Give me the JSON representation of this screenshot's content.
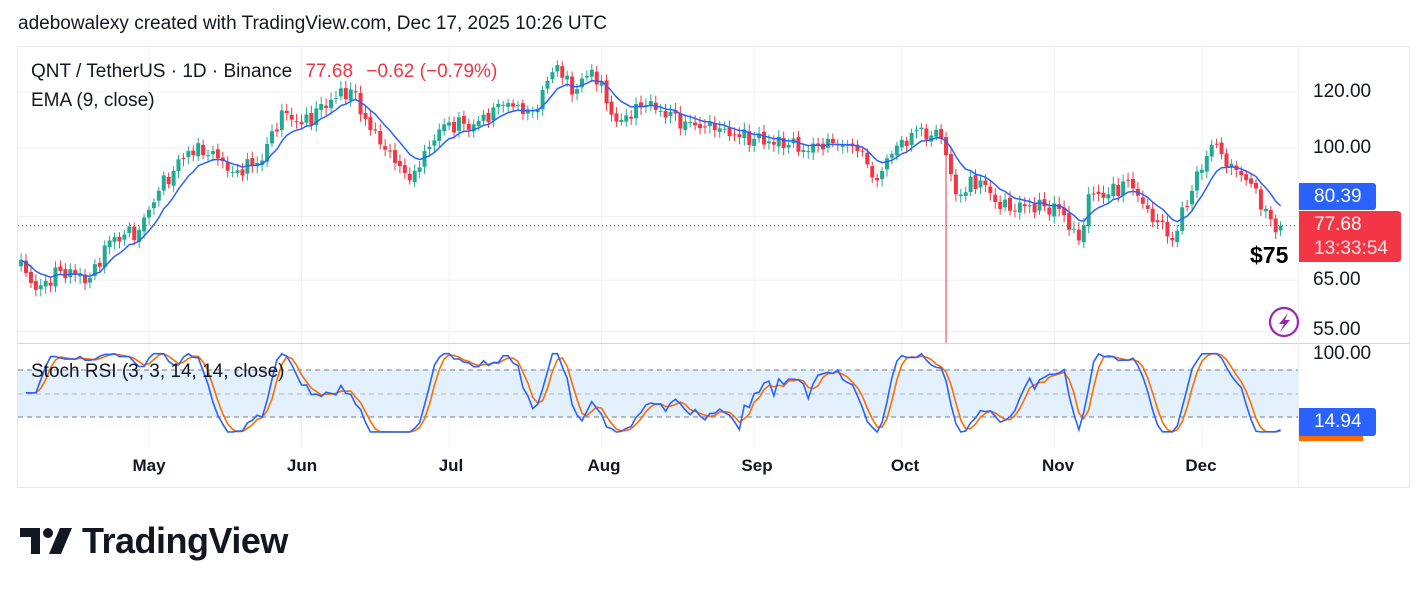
{
  "header": {
    "attribution": "adebowalexy created with TradingView.com, Dec 17, 2025 10:26 UTC"
  },
  "legend": {
    "symbol": "QNT / TetherUS · 1D · Binance",
    "last": "77.68",
    "change": "−0.62 (−0.79%)",
    "ema": "EMA (9, close)",
    "stoch": "Stoch RSI (3, 3, 14, 14, close)"
  },
  "price_axis": {
    "ticks": [
      "120.00",
      "100.00",
      "65.00",
      "55.00"
    ],
    "stoch_ticks": [
      "100.00"
    ]
  },
  "tags": {
    "ema_value": "80.39",
    "last_price": "77.68",
    "countdown": "13:33:54",
    "stoch_value": "14.94"
  },
  "annotation": "$75",
  "logo": "TradingView",
  "colors": {
    "up": "#22ab94",
    "down": "#f23645",
    "ema": "#2962ff",
    "stoch_k": "#2962ff",
    "stoch_d": "#ff6d00",
    "tag_blue": "#2962ff",
    "tag_red": "#f23645",
    "band": "#e3f0fd"
  },
  "chart_data": {
    "type": "candlestick",
    "title": "QNT / TetherUS · 1D · Binance",
    "scale": "log",
    "ylim": [
      52,
      138
    ],
    "x_ticks": [
      "May",
      "Jun",
      "Jul",
      "Aug",
      "Sep",
      "Oct",
      "Nov",
      "Dec"
    ],
    "y_ticks": [
      120,
      100,
      65,
      55
    ],
    "grid": true,
    "approx_closes": [
      [
        "Apr 5",
        69.4
      ],
      [
        "Apr 8",
        63
      ],
      [
        "Apr 13",
        67
      ],
      [
        "Apr 19",
        65.5
      ],
      [
        "Apr 23",
        74
      ],
      [
        "Apr 29",
        76.6
      ],
      [
        "May 3",
        87
      ],
      [
        "May 9",
        99
      ],
      [
        "May 14",
        99
      ],
      [
        "May 18",
        92.5
      ],
      [
        "May 24",
        96
      ],
      [
        "May 28",
        113
      ],
      [
        "Jun 1",
        108
      ],
      [
        "Jun 7",
        117
      ],
      [
        "Jun 11",
        121
      ],
      [
        "Jun 15",
        106
      ],
      [
        "Jun 19",
        99
      ],
      [
        "Jun 23",
        90
      ],
      [
        "Jun 26",
        99
      ],
      [
        "Jun 30",
        108
      ],
      [
        "Jul 6",
        108
      ],
      [
        "Jul 12",
        115
      ],
      [
        "Jul 18",
        113
      ],
      [
        "Jul 23",
        131
      ],
      [
        "Jul 26",
        119
      ],
      [
        "Jul 30",
        129
      ],
      [
        "Aug 4",
        109
      ],
      [
        "Aug 10",
        115
      ],
      [
        "Aug 18",
        109
      ],
      [
        "Aug 24",
        106
      ],
      [
        "Sep 1",
        103
      ],
      [
        "Sep 8",
        101
      ],
      [
        "Sep 12",
        99
      ],
      [
        "Sep 16",
        103
      ],
      [
        "Sep 22",
        99
      ],
      [
        "Sep 26",
        90
      ],
      [
        "Sep 29",
        98
      ],
      [
        "Oct 4",
        106
      ],
      [
        "Oct 9",
        103
      ],
      [
        "Oct 12",
        86
      ],
      [
        "Oct 17",
        90
      ],
      [
        "Oct 21",
        82
      ],
      [
        "Oct 27",
        83
      ],
      [
        "Nov 2",
        82
      ],
      [
        "Nov 6",
        74
      ],
      [
        "Nov 8",
        86
      ],
      [
        "Nov 12",
        86
      ],
      [
        "Nov 16",
        90
      ],
      [
        "Nov 20",
        82
      ],
      [
        "Nov 25",
        74
      ],
      [
        "Nov 29",
        87
      ],
      [
        "Dec 3",
        101
      ],
      [
        "Dec 7",
        95
      ],
      [
        "Dec 11",
        89
      ],
      [
        "Dec 14",
        82
      ],
      [
        "Dec 16",
        76
      ],
      [
        "Dec 17",
        77.68
      ]
    ],
    "wick_lows": [
      [
        "Oct 10",
        53
      ]
    ],
    "series": [
      {
        "name": "EMA (9, close)",
        "last": 80.39
      },
      {
        "name": "Stoch RSI (3, 3, 14, 14, close)",
        "last": 14.94,
        "bands": [
          80,
          20
        ]
      }
    ]
  }
}
